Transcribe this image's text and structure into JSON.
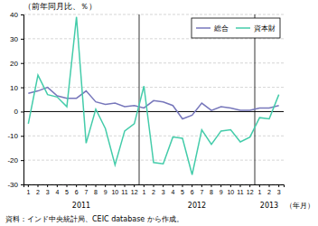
{
  "chart_data": {
    "type": "line",
    "title": "（前年同月比、％）",
    "x_label": "（年月）",
    "annotations": [
      {
        "text": "資料：インド中央統計局、CEIC database から作成。"
      }
    ],
    "categories": [
      "1",
      "2",
      "3",
      "4",
      "5",
      "6",
      "7",
      "8",
      "9",
      "10",
      "11",
      "12",
      "1",
      "2",
      "3",
      "4",
      "5",
      "6",
      "7",
      "8",
      "9",
      "10",
      "11",
      "12",
      "1",
      "2",
      "3"
    ],
    "x_groups": [
      {
        "label": "2011",
        "count": 12
      },
      {
        "label": "2012",
        "count": 12
      },
      {
        "label": "2013",
        "count": 3
      }
    ],
    "series": [
      {
        "name": "総合",
        "color": "#7777bb",
        "values": [
          7.5,
          8.5,
          10.0,
          6.5,
          5.5,
          5.5,
          8.5,
          4.0,
          3.0,
          3.5,
          2.0,
          2.5,
          1.5,
          4.5,
          4.0,
          2.5,
          -3.0,
          -1.5,
          3.5,
          0.5,
          2.0,
          1.5,
          0.5,
          0.5,
          1.5,
          1.5,
          2.5
        ]
      },
      {
        "name": "資本財",
        "color": "#44ccaa",
        "values": [
          -5.0,
          15.0,
          7.0,
          6.0,
          2.0,
          39.0,
          -13.0,
          1.0,
          -7.0,
          -22.0,
          -8.0,
          -5.0,
          10.5,
          -21.0,
          -21.5,
          -10.5,
          -11.0,
          -26.0,
          -7.5,
          -13.5,
          -8.0,
          -7.5,
          -12.5,
          -10.5,
          -2.5,
          -3.0,
          7.0
        ]
      }
    ],
    "ylim": [
      -30,
      40
    ],
    "yticks": [
      -30,
      -20,
      -10,
      0,
      10,
      20,
      30,
      40
    ],
    "grid": true,
    "legend": "upper right"
  }
}
